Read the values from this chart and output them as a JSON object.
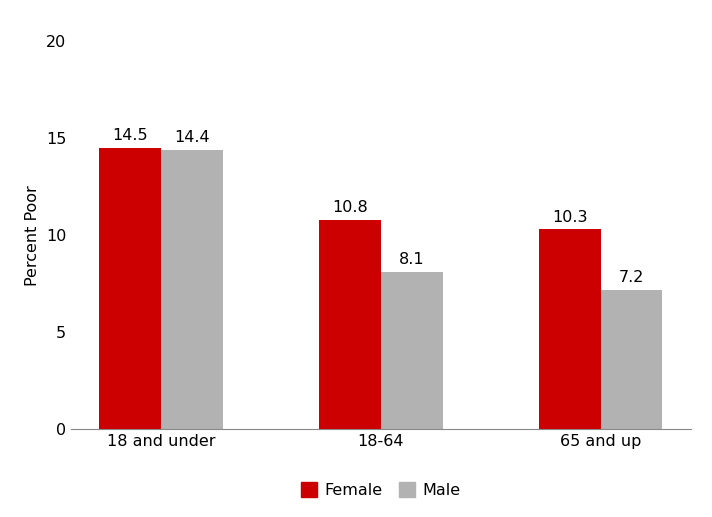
{
  "categories": [
    "18 and under",
    "18-64",
    "65 and up"
  ],
  "female_values": [
    14.5,
    10.8,
    10.3
  ],
  "male_values": [
    14.4,
    8.1,
    7.2
  ],
  "female_color": "#cc0000",
  "male_color": "#b2b2b2",
  "ylabel": "Percent Poor",
  "ylim": [
    0,
    20
  ],
  "yticks": [
    0,
    5,
    10,
    15,
    20
  ],
  "legend_labels": [
    "Female",
    "Male"
  ],
  "bar_width": 0.28,
  "tick_fontsize": 11.5,
  "ylabel_fontsize": 11.5,
  "legend_fontsize": 11.5,
  "annotation_fontsize": 11.5
}
